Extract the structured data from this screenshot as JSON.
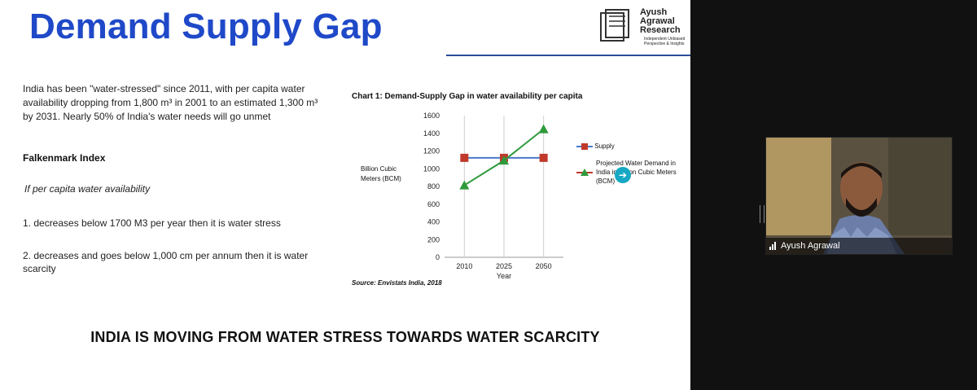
{
  "slide": {
    "title": "Demand Supply Gap",
    "logo": {
      "name_line1": "Ayush",
      "name_line2": "Agrawal",
      "name_line3": "Research",
      "tagline": "Independent Unbiased Perspective & Insights"
    },
    "paragraph": "India has been \"water-stressed\" since 2011, with per capita water availability dropping from 1,800 m³ in 2001 to an estimated 1,300 m³ by 2031. Nearly 50% of India's water needs will go unmet",
    "falkenmark": {
      "title": "Falkenmark Index",
      "condition": "If per capita water availability",
      "point1": "1.  decreases below 1700 M3 per year then it is water stress",
      "point2": "2. decreases and goes below 1,000 cm per annum  then it is water scarcity"
    },
    "conclusion": "INDIA IS MOVING FROM WATER STRESS TOWARDS WATER SCARCITY",
    "chart": {
      "title": "Chart 1: Demand-Supply Gap in water availability per capita",
      "source": "Source: Envistats India, 2018",
      "ylabel": "Billion Cubic Meters (BCM)",
      "legend": {
        "supply": "Supply",
        "demand": "Projected Water Demand in India in Billion Cubic Meters (BCM)"
      }
    }
  },
  "participant": {
    "name": "Ayush Agrawal"
  },
  "colors": {
    "title": "#1f49c8",
    "supply": "#4a78c9",
    "supply_marker": "#c0392b",
    "demand": "#2f9a3b"
  },
  "chart_data": {
    "type": "line",
    "categories": [
      "2010",
      "2025",
      "2050"
    ],
    "series": [
      {
        "name": "Supply",
        "values": [
          1123,
          1123,
          1123
        ]
      },
      {
        "name": "Projected Water Demand in India in Billion Cubic Meters (BCM)",
        "values": [
          813,
          1093,
          1447
        ]
      }
    ],
    "title": "Chart 1: Demand-Supply Gap in water availability per capita",
    "xlabel": "Year",
    "ylabel": "Billion Cubic Meters (BCM)",
    "ylim": [
      0,
      1600
    ],
    "yticks": [
      0,
      200,
      400,
      600,
      800,
      1000,
      1200,
      1400,
      1600
    ],
    "grid": "vertical",
    "legend": "right"
  }
}
